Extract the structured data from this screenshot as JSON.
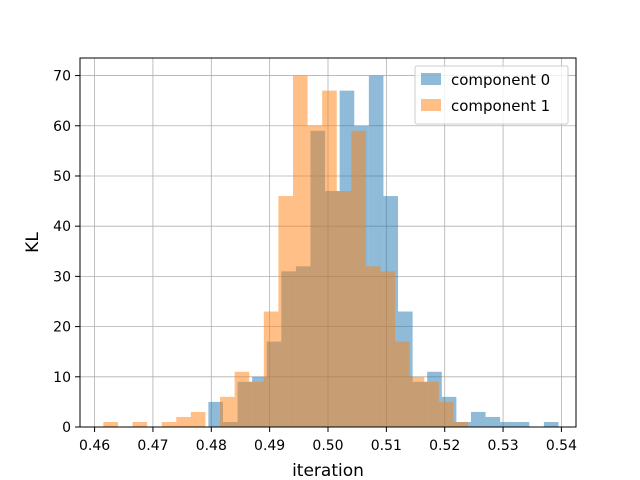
{
  "chart_data": {
    "type": "histogram",
    "xlabel": "iteration",
    "ylabel": "KL",
    "xlim": [
      0.4575,
      0.5425
    ],
    "ylim": [
      0,
      73.5
    ],
    "xticks": [
      "0.46",
      "0.47",
      "0.48",
      "0.49",
      "0.50",
      "0.51",
      "0.52",
      "0.53",
      "0.54"
    ],
    "yticks": [
      "0",
      "10",
      "20",
      "30",
      "40",
      "50",
      "60",
      "70"
    ],
    "grid": true,
    "legend_position": "top-right",
    "series": [
      {
        "name": "component 0",
        "color": "#1f77b4",
        "alpha": 0.5,
        "bins": [
          [
            0.4795,
            0.482,
            5
          ],
          [
            0.482,
            0.4845,
            1
          ],
          [
            0.4845,
            0.487,
            9
          ],
          [
            0.487,
            0.4895,
            10
          ],
          [
            0.4895,
            0.492,
            17
          ],
          [
            0.492,
            0.4945,
            31
          ],
          [
            0.4945,
            0.497,
            32
          ],
          [
            0.497,
            0.4995,
            59
          ],
          [
            0.4995,
            0.502,
            47
          ],
          [
            0.502,
            0.5045,
            67
          ],
          [
            0.5045,
            0.507,
            60
          ],
          [
            0.507,
            0.5095,
            70
          ],
          [
            0.5095,
            0.512,
            46
          ],
          [
            0.512,
            0.5145,
            23
          ],
          [
            0.5145,
            0.517,
            9
          ],
          [
            0.517,
            0.5195,
            11
          ],
          [
            0.5195,
            0.522,
            6
          ],
          [
            0.522,
            0.5245,
            1
          ],
          [
            0.5245,
            0.527,
            3
          ],
          [
            0.527,
            0.5295,
            2
          ],
          [
            0.5295,
            0.532,
            1
          ],
          [
            0.532,
            0.5345,
            1
          ],
          [
            0.537,
            0.5395,
            1
          ]
        ]
      },
      {
        "name": "component 1",
        "color": "#ff7f0e",
        "alpha": 0.5,
        "bins": [
          [
            0.4615,
            0.464,
            1
          ],
          [
            0.4665,
            0.469,
            1
          ],
          [
            0.4715,
            0.474,
            1
          ],
          [
            0.474,
            0.4765,
            2
          ],
          [
            0.4765,
            0.479,
            3
          ],
          [
            0.4815,
            0.484,
            6
          ],
          [
            0.484,
            0.4865,
            11
          ],
          [
            0.4865,
            0.489,
            9
          ],
          [
            0.489,
            0.4915,
            23
          ],
          [
            0.4915,
            0.494,
            46
          ],
          [
            0.494,
            0.4965,
            70
          ],
          [
            0.4965,
            0.499,
            60
          ],
          [
            0.499,
            0.5015,
            67
          ],
          [
            0.5015,
            0.504,
            47
          ],
          [
            0.504,
            0.5065,
            59
          ],
          [
            0.5065,
            0.509,
            32
          ],
          [
            0.509,
            0.5115,
            31
          ],
          [
            0.5115,
            0.514,
            17
          ],
          [
            0.514,
            0.5165,
            10
          ],
          [
            0.5165,
            0.519,
            9
          ],
          [
            0.519,
            0.5215,
            5
          ],
          [
            0.5215,
            0.524,
            1
          ]
        ]
      }
    ]
  }
}
